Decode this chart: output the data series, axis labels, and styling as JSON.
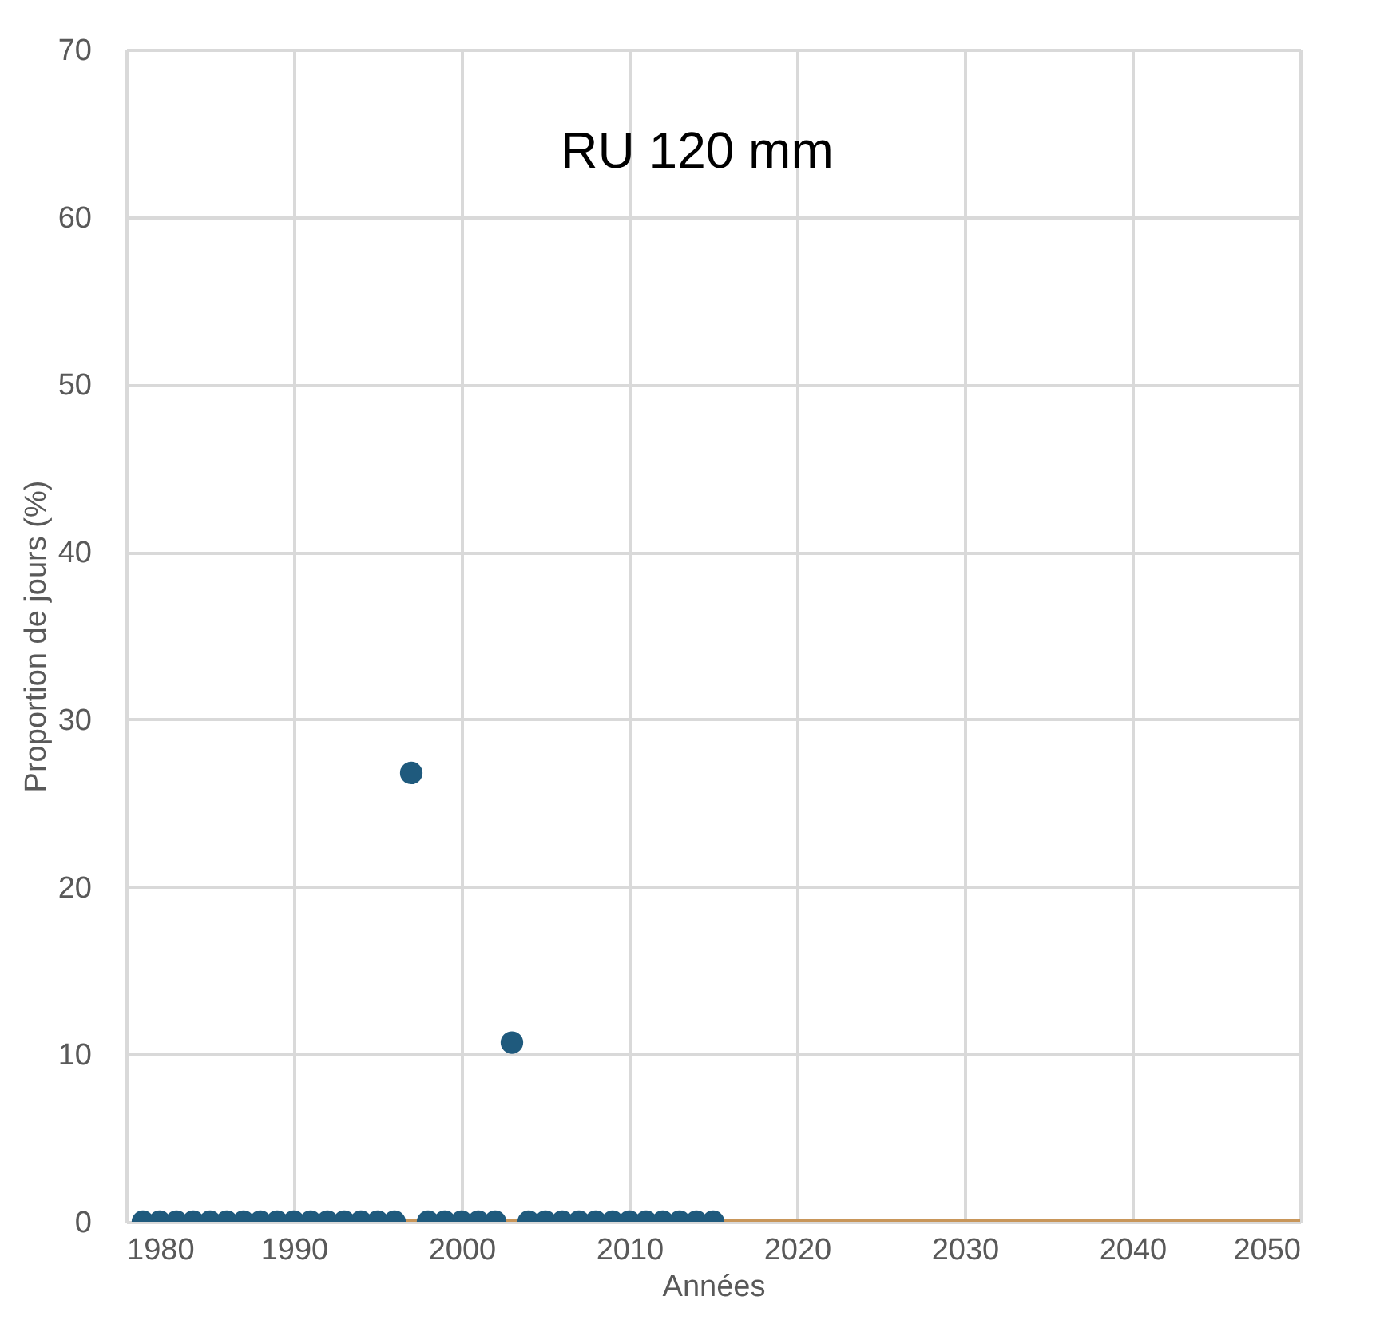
{
  "chart_data": {
    "type": "scatter",
    "title": "RU 120 mm",
    "xlabel": "Années",
    "ylabel": "Proportion de jours (%)",
    "xlim": [
      1980,
      2050
    ],
    "xticks": [
      1980,
      1990,
      2000,
      2010,
      2020,
      2030,
      2040,
      2050
    ],
    "ylim": [
      0,
      70
    ],
    "yticks": [
      0,
      10,
      20,
      30,
      40,
      50,
      60,
      70
    ],
    "grid": true,
    "series": [
      {
        "type": "line",
        "color": "#c8965a",
        "x": [
          1981,
          2050
        ],
        "values": [
          0,
          0
        ],
        "line_style": "solid",
        "marker": "none"
      },
      {
        "marker": "circle",
        "color": "#1f5a7d",
        "x": [
          1981,
          1982,
          1983,
          1984,
          1985,
          1986,
          1987,
          1988,
          1989,
          1990,
          1991,
          1992,
          1993,
          1994,
          1995,
          1996,
          1997,
          1998,
          1999,
          2000,
          2001,
          2002,
          2003,
          2004,
          2005,
          2006,
          2007,
          2008,
          2009,
          2010,
          2011,
          2012,
          2013,
          2014,
          2015
        ],
        "values": [
          0,
          0,
          0,
          0,
          0,
          0,
          0,
          0,
          0,
          0,
          0,
          0,
          0,
          0,
          0,
          0,
          26.8,
          0,
          0,
          0,
          0,
          0,
          10.7,
          0,
          0,
          0,
          0,
          0,
          0,
          0,
          0,
          0,
          0,
          0,
          0
        ]
      }
    ]
  }
}
